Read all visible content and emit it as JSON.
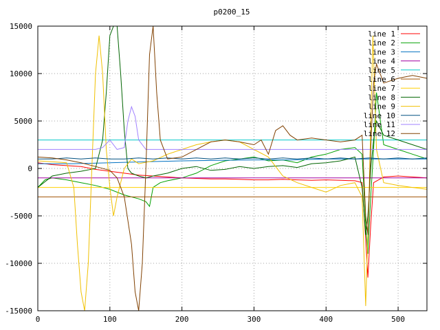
{
  "chart_data": {
    "type": "line",
    "title": "p0200_15",
    "xlabel": "",
    "ylabel": "",
    "xlim": [
      0,
      540
    ],
    "ylim": [
      -15000,
      15000
    ],
    "xticks": [
      0,
      100,
      200,
      300,
      400,
      500
    ],
    "yticks": [
      -15000,
      -10000,
      -5000,
      0,
      5000,
      10000,
      15000
    ],
    "grid": true,
    "legend_position": "top-right",
    "series": [
      {
        "name": "line 1",
        "color": "#ff0000",
        "points": [
          [
            0,
            600
          ],
          [
            20,
            400
          ],
          [
            40,
            300
          ],
          [
            60,
            200
          ],
          [
            80,
            -100
          ],
          [
            100,
            -300
          ],
          [
            120,
            -500
          ],
          [
            140,
            -700
          ],
          [
            160,
            -800
          ],
          [
            180,
            -900
          ],
          [
            200,
            -1000
          ],
          [
            220,
            -1050
          ],
          [
            240,
            -1100
          ],
          [
            260,
            -1100
          ],
          [
            280,
            -1150
          ],
          [
            300,
            -1200
          ],
          [
            320,
            -1200
          ],
          [
            340,
            -1150
          ],
          [
            360,
            -1200
          ],
          [
            380,
            -1250
          ],
          [
            400,
            -1200
          ],
          [
            420,
            -1250
          ],
          [
            440,
            -1300
          ],
          [
            450,
            -1500
          ],
          [
            455,
            -7500
          ],
          [
            458,
            -11500
          ],
          [
            462,
            -6000
          ],
          [
            466,
            -1500
          ],
          [
            480,
            -900
          ],
          [
            500,
            -800
          ],
          [
            520,
            -900
          ],
          [
            540,
            -1000
          ]
        ]
      },
      {
        "name": "line 2",
        "color": "#00a000",
        "points": [
          [
            0,
            -2000
          ],
          [
            10,
            -1200
          ],
          [
            20,
            -1000
          ],
          [
            40,
            -1200
          ],
          [
            60,
            -1500
          ],
          [
            80,
            -1800
          ],
          [
            100,
            -2200
          ],
          [
            120,
            -2800
          ],
          [
            140,
            -3200
          ],
          [
            150,
            -3500
          ],
          [
            155,
            -4000
          ],
          [
            160,
            -2000
          ],
          [
            170,
            -1500
          ],
          [
            180,
            -1300
          ],
          [
            200,
            -1000
          ],
          [
            220,
            -500
          ],
          [
            240,
            300
          ],
          [
            260,
            800
          ],
          [
            280,
            1000
          ],
          [
            300,
            1200
          ],
          [
            320,
            800
          ],
          [
            340,
            900
          ],
          [
            360,
            600
          ],
          [
            380,
            1200
          ],
          [
            400,
            1500
          ],
          [
            420,
            2000
          ],
          [
            440,
            2200
          ],
          [
            450,
            1500
          ],
          [
            455,
            -6000
          ],
          [
            458,
            -9000
          ],
          [
            462,
            -3000
          ],
          [
            466,
            2000
          ],
          [
            470,
            8000
          ],
          [
            480,
            2500
          ],
          [
            500,
            2000
          ],
          [
            520,
            1500
          ],
          [
            540,
            1000
          ]
        ]
      },
      {
        "name": "line 3",
        "color": "#0070c0",
        "points": [
          [
            0,
            500
          ],
          [
            50,
            500
          ],
          [
            100,
            600
          ],
          [
            150,
            700
          ],
          [
            200,
            800
          ],
          [
            250,
            850
          ],
          [
            300,
            900
          ],
          [
            350,
            900
          ],
          [
            400,
            1000
          ],
          [
            450,
            1000
          ],
          [
            500,
            1000
          ],
          [
            540,
            1000
          ]
        ]
      },
      {
        "name": "line 4",
        "color": "#a000a0",
        "points": [
          [
            0,
            -1000
          ],
          [
            100,
            -1000
          ],
          [
            200,
            -1000
          ],
          [
            300,
            -1000
          ],
          [
            400,
            -1000
          ],
          [
            450,
            -1000
          ],
          [
            500,
            -1000
          ],
          [
            540,
            -1000
          ]
        ]
      },
      {
        "name": "line 5",
        "color": "#00c8c8",
        "points": [
          [
            0,
            3000
          ],
          [
            100,
            3000
          ],
          [
            200,
            3000
          ],
          [
            300,
            3000
          ],
          [
            400,
            3000
          ],
          [
            500,
            3000
          ],
          [
            540,
            3000
          ]
        ]
      },
      {
        "name": "line 6",
        "color": "#a05000",
        "points": [
          [
            0,
            -3000
          ],
          [
            100,
            -3000
          ],
          [
            200,
            -3000
          ],
          [
            300,
            -3000
          ],
          [
            400,
            -3000
          ],
          [
            500,
            -3000
          ],
          [
            540,
            -3000
          ]
        ]
      },
      {
        "name": "line 7",
        "color": "#ffd000",
        "points": [
          [
            0,
            -2000
          ],
          [
            100,
            -2000
          ],
          [
            200,
            -2000
          ],
          [
            300,
            -2000
          ],
          [
            400,
            -2000
          ],
          [
            500,
            -2000
          ],
          [
            540,
            -2000
          ]
        ]
      },
      {
        "name": "line 8",
        "color": "#006400",
        "points": [
          [
            0,
            -2000
          ],
          [
            20,
            -800
          ],
          [
            40,
            -500
          ],
          [
            60,
            -300
          ],
          [
            80,
            0
          ],
          [
            90,
            3000
          ],
          [
            95,
            8000
          ],
          [
            100,
            14000
          ],
          [
            105,
            15000
          ],
          [
            110,
            15000
          ],
          [
            115,
            10000
          ],
          [
            120,
            4000
          ],
          [
            125,
            0
          ],
          [
            130,
            -500
          ],
          [
            140,
            -800
          ],
          [
            150,
            -1000
          ],
          [
            160,
            -800
          ],
          [
            180,
            -500
          ],
          [
            200,
            0
          ],
          [
            220,
            200
          ],
          [
            240,
            -200
          ],
          [
            260,
            -100
          ],
          [
            280,
            200
          ],
          [
            300,
            0
          ],
          [
            320,
            200
          ],
          [
            340,
            300
          ],
          [
            360,
            100
          ],
          [
            380,
            500
          ],
          [
            400,
            600
          ],
          [
            420,
            800
          ],
          [
            440,
            1200
          ],
          [
            450,
            -2000
          ],
          [
            455,
            -7000
          ],
          [
            458,
            -5000
          ],
          [
            462,
            0
          ],
          [
            466,
            3000
          ],
          [
            470,
            5000
          ],
          [
            480,
            3500
          ],
          [
            500,
            3000
          ],
          [
            520,
            2500
          ],
          [
            540,
            2000
          ]
        ]
      },
      {
        "name": "line 9",
        "color": "#f0c000",
        "points": [
          [
            0,
            800
          ],
          [
            20,
            700
          ],
          [
            40,
            600
          ],
          [
            50,
            -2000
          ],
          [
            55,
            -8000
          ],
          [
            60,
            -13000
          ],
          [
            65,
            -15000
          ],
          [
            70,
            -10000
          ],
          [
            75,
            0
          ],
          [
            80,
            10000
          ],
          [
            85,
            14000
          ],
          [
            90,
            10000
          ],
          [
            95,
            2000
          ],
          [
            100,
            -2000
          ],
          [
            105,
            -5000
          ],
          [
            110,
            -3000
          ],
          [
            120,
            0
          ],
          [
            130,
            1000
          ],
          [
            140,
            500
          ],
          [
            160,
            800
          ],
          [
            180,
            1500
          ],
          [
            200,
            2000
          ],
          [
            220,
            2500
          ],
          [
            240,
            2800
          ],
          [
            260,
            3000
          ],
          [
            280,
            2800
          ],
          [
            300,
            2000
          ],
          [
            320,
            1200
          ],
          [
            340,
            -800
          ],
          [
            360,
            -1500
          ],
          [
            380,
            -2000
          ],
          [
            400,
            -2500
          ],
          [
            420,
            -1800
          ],
          [
            440,
            -1500
          ],
          [
            450,
            -3000
          ],
          [
            455,
            -14500
          ],
          [
            460,
            -2000
          ],
          [
            465,
            14000
          ],
          [
            470,
            2000
          ],
          [
            480,
            -1500
          ],
          [
            500,
            -1800
          ],
          [
            520,
            -2000
          ],
          [
            540,
            -2200
          ]
        ]
      },
      {
        "name": "line 10",
        "color": "#005080",
        "points": [
          [
            0,
            1000
          ],
          [
            20,
            1000
          ],
          [
            40,
            1100
          ],
          [
            60,
            1000
          ],
          [
            80,
            1100
          ],
          [
            100,
            1000
          ],
          [
            120,
            1000
          ],
          [
            140,
            1100
          ],
          [
            160,
            1000
          ],
          [
            180,
            1100
          ],
          [
            200,
            1000
          ],
          [
            220,
            1100
          ],
          [
            240,
            1000
          ],
          [
            260,
            1100
          ],
          [
            280,
            1000
          ],
          [
            300,
            1100
          ],
          [
            320,
            1000
          ],
          [
            340,
            1100
          ],
          [
            360,
            1000
          ],
          [
            380,
            1100
          ],
          [
            400,
            1000
          ],
          [
            420,
            1100
          ],
          [
            440,
            1000
          ],
          [
            460,
            1100
          ],
          [
            480,
            1000
          ],
          [
            500,
            1100
          ],
          [
            520,
            1000
          ],
          [
            540,
            1100
          ]
        ]
      },
      {
        "name": "line 11",
        "color": "#a080ff",
        "points": [
          [
            0,
            2000
          ],
          [
            80,
            2000
          ],
          [
            90,
            2200
          ],
          [
            100,
            3000
          ],
          [
            110,
            2000
          ],
          [
            120,
            2200
          ],
          [
            125,
            5000
          ],
          [
            130,
            6500
          ],
          [
            135,
            5500
          ],
          [
            140,
            3000
          ],
          [
            150,
            2000
          ],
          [
            200,
            2000
          ],
          [
            250,
            2000
          ],
          [
            300,
            2000
          ],
          [
            350,
            2000
          ],
          [
            400,
            2000
          ],
          [
            450,
            2000
          ],
          [
            500,
            2000
          ],
          [
            540,
            2000
          ]
        ]
      },
      {
        "name": "line 12",
        "color": "#804000",
        "points": [
          [
            0,
            1200
          ],
          [
            20,
            1100
          ],
          [
            40,
            900
          ],
          [
            60,
            600
          ],
          [
            80,
            200
          ],
          [
            100,
            -200
          ],
          [
            110,
            -1000
          ],
          [
            120,
            -3000
          ],
          [
            130,
            -8000
          ],
          [
            135,
            -13000
          ],
          [
            140,
            -15000
          ],
          [
            145,
            -10000
          ],
          [
            150,
            0
          ],
          [
            155,
            12000
          ],
          [
            160,
            15000
          ],
          [
            165,
            8000
          ],
          [
            170,
            3000
          ],
          [
            180,
            1000
          ],
          [
            200,
            1200
          ],
          [
            220,
            2000
          ],
          [
            240,
            2800
          ],
          [
            260,
            3000
          ],
          [
            280,
            2800
          ],
          [
            300,
            2500
          ],
          [
            310,
            3000
          ],
          [
            320,
            1500
          ],
          [
            330,
            4000
          ],
          [
            340,
            4500
          ],
          [
            350,
            3500
          ],
          [
            360,
            3000
          ],
          [
            380,
            3200
          ],
          [
            400,
            3000
          ],
          [
            420,
            2800
          ],
          [
            440,
            3000
          ],
          [
            450,
            3500
          ],
          [
            455,
            -5000
          ],
          [
            458,
            -7000
          ],
          [
            462,
            2000
          ],
          [
            466,
            9000
          ],
          [
            470,
            11000
          ],
          [
            480,
            9000
          ],
          [
            500,
            9500
          ],
          [
            520,
            9800
          ],
          [
            540,
            9500
          ]
        ]
      }
    ]
  }
}
